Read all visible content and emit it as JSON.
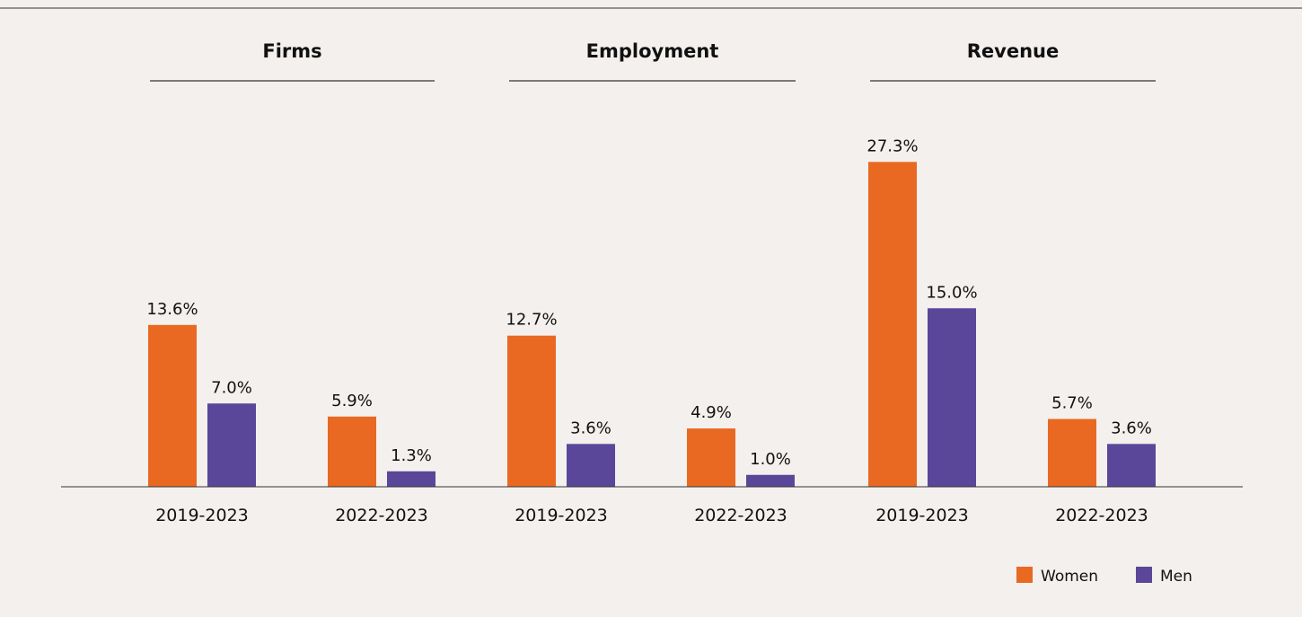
{
  "chart_data": {
    "type": "bar",
    "groups": [
      "Firms",
      "Employment",
      "Revenue"
    ],
    "categories": [
      "2019-2023",
      "2022-2023"
    ],
    "series": [
      {
        "name": "Women",
        "color": "#e96923",
        "values": [
          [
            13.6,
            5.9
          ],
          [
            12.7,
            4.9
          ],
          [
            27.3,
            5.7
          ]
        ],
        "labels": [
          [
            "13.6%",
            "5.9%"
          ],
          [
            "12.7%",
            "4.9%"
          ],
          [
            "27.3%",
            "5.7%"
          ]
        ]
      },
      {
        "name": "Men",
        "color": "#5a4799",
        "values": [
          [
            7.0,
            1.3
          ],
          [
            3.6,
            1.0
          ],
          [
            15.0,
            3.6
          ]
        ],
        "labels": [
          [
            "7.0%",
            "1.3%"
          ],
          [
            "3.6%",
            "1.0%"
          ],
          [
            "15.0%",
            "3.6%"
          ]
        ]
      }
    ],
    "ylim": [
      0,
      30
    ],
    "grid": false,
    "legend_position": "bottom-right"
  }
}
